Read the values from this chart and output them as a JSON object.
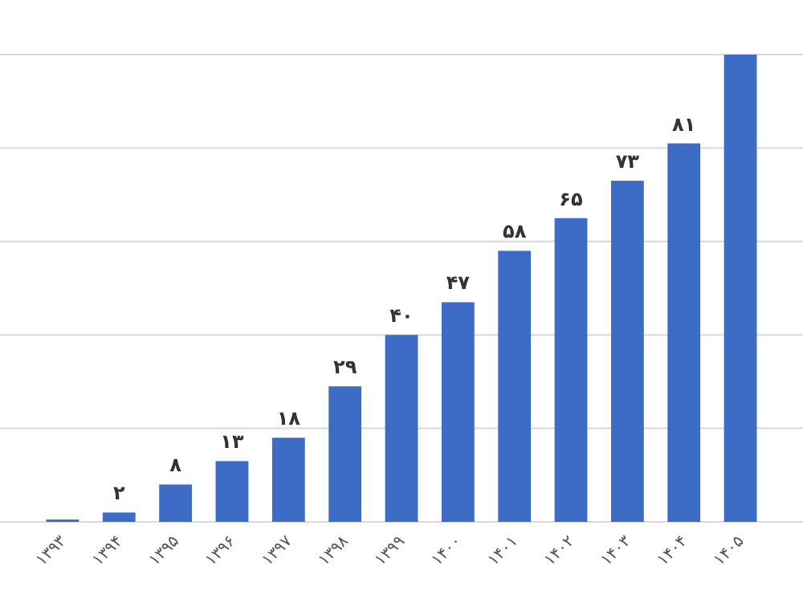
{
  "chart_data": {
    "type": "bar",
    "categories": [
      "۱۳۹۳",
      "۱۳۹۴",
      "۱۳۹۵",
      "۱۳۹۶",
      "۱۳۹۷",
      "۱۳۹۸",
      "۱۳۹۹",
      "۱۴۰۰",
      "۱۴۰۱",
      "۱۴۰۲",
      "۱۴۰۳",
      "۱۴۰۴",
      "۱۴۰۵"
    ],
    "values": [
      0.5,
      2,
      8,
      13,
      18,
      29,
      40,
      47,
      58,
      65,
      73,
      81,
      100
    ],
    "value_labels": [
      null,
      "۲",
      "۸",
      "۱۳",
      "۱۸",
      "۲۹",
      "۴۰",
      "۴۷",
      "۵۸",
      "۶۵",
      "۷۳",
      "۸۱",
      null
    ],
    "color": "#3d6cc6",
    "ylim": [
      0,
      100
    ],
    "yticks": [
      {
        "value": 0,
        "label": null
      },
      {
        "value": 20,
        "label": null
      },
      {
        "value": 40,
        "label": null
      },
      {
        "value": 60,
        "label": null
      },
      {
        "value": 80,
        "label": null
      },
      {
        "value": 100,
        "label": null
      }
    ],
    "grid": "y",
    "tick_labels": "x"
  }
}
